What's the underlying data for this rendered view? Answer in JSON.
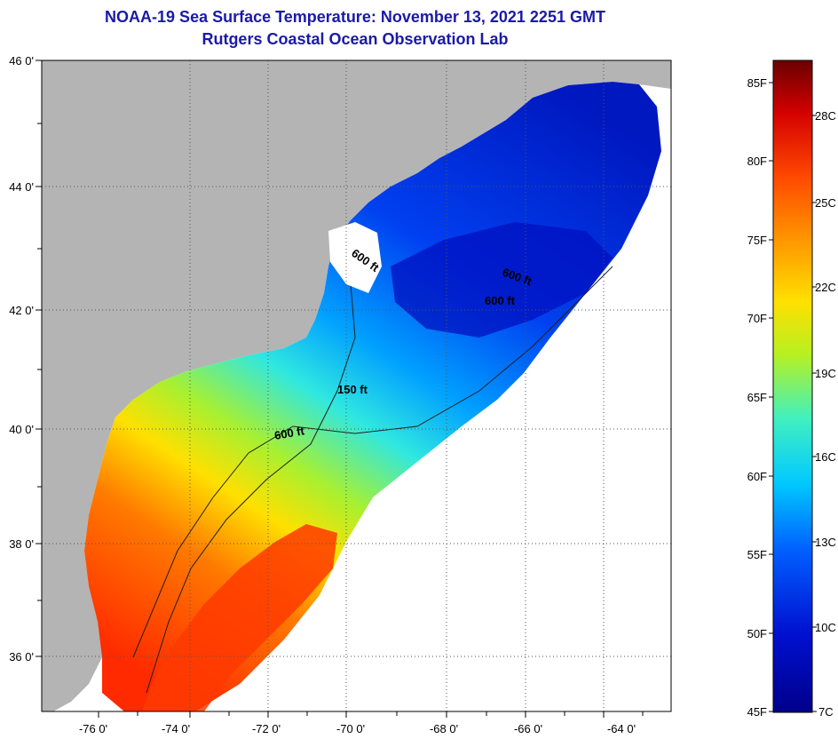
{
  "title": {
    "line1": "NOAA-19 Sea Surface Temperature:  November 13, 2021 2251 GMT",
    "line2": "Rutgers Coastal Ocean Observation Lab"
  },
  "axes": {
    "lat_labels": [
      "46 0'",
      "44 0'",
      "42 0'",
      "40 0'",
      "38 0'",
      "36 0'"
    ],
    "lon_labels": [
      "-76 0'",
      "-74 0'",
      "-72 0'",
      "-70 0'",
      "-68 0'",
      "-66 0'",
      "-64 0'"
    ]
  },
  "contours": {
    "c1": "600 ft",
    "c2": "600 ft",
    "c3": "600 ft",
    "c4": "150 ft",
    "c5": "600 ft"
  },
  "colorbar": {
    "fahrenheit": [
      "85F",
      "80F",
      "75F",
      "70F",
      "65F",
      "60F",
      "55F",
      "50F",
      "45F"
    ],
    "celsius": [
      "28C",
      "25C",
      "22C",
      "19C",
      "16C",
      "13C",
      "10C",
      "7C"
    ],
    "colors": [
      "#6a0000",
      "#d40000",
      "#ff4a00",
      "#ff9a00",
      "#ffe000",
      "#b8f020",
      "#40f0c0",
      "#00c8ff",
      "#0060ff",
      "#0010d0",
      "#00008a"
    ]
  }
}
